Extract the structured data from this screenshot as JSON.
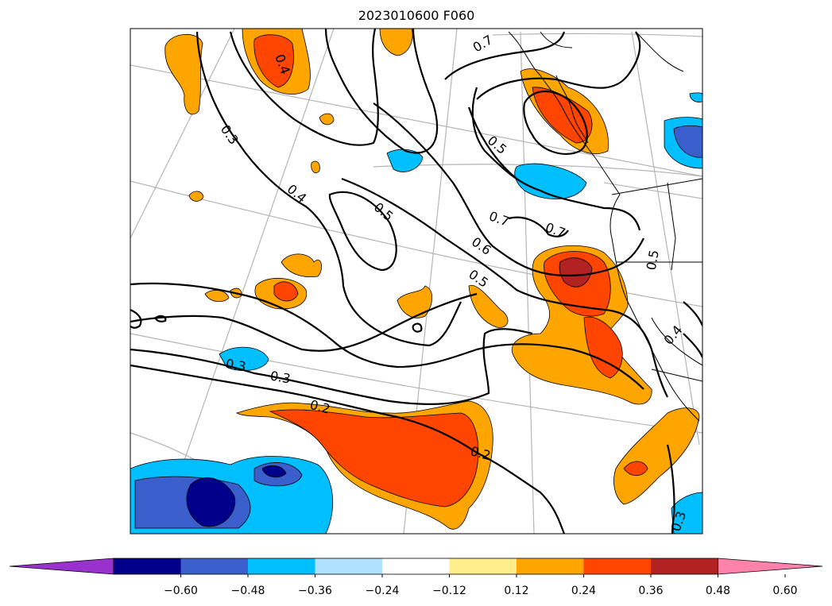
{
  "title": "2023010600 F060",
  "colorbar": {
    "levels": [
      -0.6,
      -0.48,
      -0.36,
      -0.24,
      -0.12,
      0.12,
      0.24,
      0.36,
      0.48,
      0.6
    ],
    "tick_labels": [
      "−0.60",
      "−0.48",
      "−0.36",
      "−0.24",
      "−0.12",
      "0.12",
      "0.24",
      "0.36",
      "0.48",
      "0.60"
    ],
    "colors": {
      "under": "#9932cc",
      "b1": "#00008b",
      "b2": "#3a5fcd",
      "b3": "#00bfff",
      "b4": "#b0e2ff",
      "mid": "#ffffff",
      "b6": "#ffec8b",
      "b7": "#ffa500",
      "b8": "#ff4500",
      "b9": "#b22222",
      "over": "#ff82ab"
    }
  },
  "contour_labels": [
    "0.7",
    "0.4",
    "0.3",
    "0.5",
    "0.4",
    "0.5",
    "0.7",
    "0.7",
    "0.6",
    "0.5",
    "0.5",
    "0.4",
    "0.3",
    "0.3",
    "0.2",
    "0.2",
    "0.3"
  ]
}
